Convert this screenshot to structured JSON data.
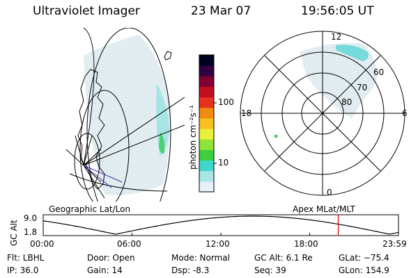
{
  "header": {
    "instrument": "Ultraviolet Imager",
    "date": "23 Mar 07",
    "time": "19:56:05 UT"
  },
  "geo_panel": {
    "label": "Geographic Lat/Lon"
  },
  "colorbar": {
    "unit": "photon cm⁻²s⁻¹",
    "ticks": [
      "100",
      "10"
    ],
    "scale": "log",
    "colors": [
      "#e6f0f5",
      "#a8e4e4",
      "#3fd6cc",
      "#3ecf3e",
      "#8ee43a",
      "#e8f03a",
      "#f5c020",
      "#f08a10",
      "#e83020",
      "#c01020",
      "#800030",
      "#300040",
      "#000020"
    ]
  },
  "polar_panel": {
    "label": "Apex MLat/MLT",
    "mlt_labels": {
      "top": "12",
      "right": "6",
      "bottom": "0",
      "left": "18"
    },
    "lat_labels": [
      "60",
      "70",
      "80"
    ]
  },
  "altitude_plot": {
    "ylabel": "GC Alt",
    "yticks": [
      "9.0",
      "1.8"
    ],
    "xticks": [
      "00:00",
      "06:00",
      "12:00",
      "18:00",
      "23:59"
    ],
    "current_marker_hour": 19.93,
    "marker_color": "#e00000"
  },
  "status": {
    "flt": "Flt: LBHL",
    "ip": "IP: 36.0",
    "door": "Door: Open",
    "gain": "Gain: 14",
    "mode": "Mode: Normal",
    "dsp": "Dsp:   -8.3",
    "gc_alt": "GC Alt: 6.1 Re",
    "seq": "Seq: 39",
    "glat": "GLat: −75.4",
    "glon": "GLon: 154.9"
  }
}
